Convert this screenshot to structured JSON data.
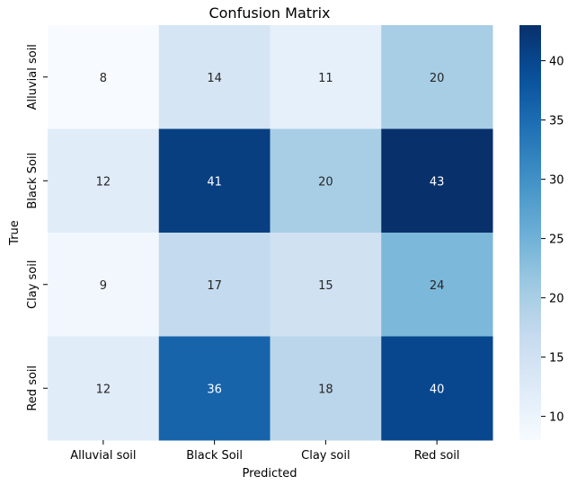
{
  "chart_data": {
    "type": "heatmap",
    "title": "Confusion Matrix",
    "xlabel": "Predicted",
    "ylabel": "True",
    "x_categories": [
      "Alluvial soil",
      "Black Soil",
      "Clay soil",
      "Red soil"
    ],
    "y_categories": [
      "Alluvial soil",
      "Black Soil",
      "Clay soil",
      "Red soil"
    ],
    "values": [
      [
        8,
        14,
        11,
        20
      ],
      [
        12,
        41,
        20,
        43
      ],
      [
        9,
        17,
        15,
        24
      ],
      [
        12,
        36,
        18,
        40
      ]
    ],
    "colormap": "Blues",
    "color_range": [
      8,
      43
    ],
    "colorbar_ticks": [
      10,
      15,
      20,
      25,
      30,
      35,
      40
    ],
    "colors": {
      "low": "#f7fbff",
      "high": "#08306b",
      "dark_text": "#262626",
      "light_text": "#ffffff"
    }
  }
}
